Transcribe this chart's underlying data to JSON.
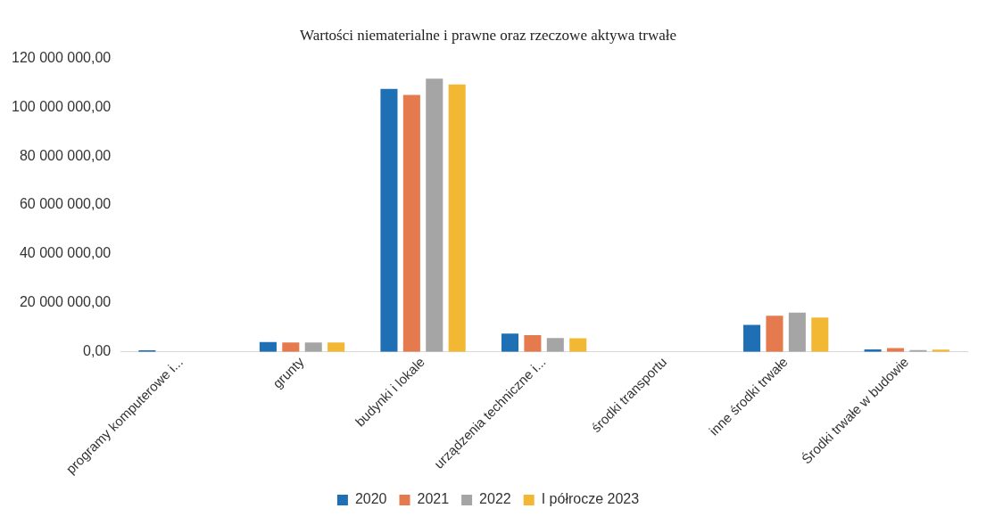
{
  "chart_data": {
    "type": "bar",
    "title": "Wartości niematerialne i prawne oraz rzeczowe aktywa trwałe",
    "categories": [
      "programy komputerowe i...",
      "grunty",
      "budynki i lokale",
      "urządzenia techniczne i...",
      "środki transportu",
      "inne środki trwałe",
      "Środki trwałe w budowie"
    ],
    "series": [
      {
        "name": "2020",
        "color": "#1f6fb4",
        "values": [
          600000,
          4000000,
          107500000,
          7500000,
          0,
          11000000,
          1000000
        ]
      },
      {
        "name": "2021",
        "color": "#e57a4e",
        "values": [
          0,
          3800000,
          105000000,
          6800000,
          0,
          14700000,
          1500000
        ]
      },
      {
        "name": "2022",
        "color": "#a5a5a5",
        "values": [
          0,
          3800000,
          111700000,
          5600000,
          0,
          16000000,
          700000
        ]
      },
      {
        "name": "I półrocze 2023",
        "color": "#f2b733",
        "values": [
          0,
          3800000,
          109300000,
          5500000,
          0,
          14000000,
          900000
        ]
      }
    ],
    "ylim": [
      0,
      120000000
    ],
    "yticks": [
      {
        "value": 0,
        "label": "0,00"
      },
      {
        "value": 20000000,
        "label": "20 000 000,00"
      },
      {
        "value": 40000000,
        "label": "40 000 000,00"
      },
      {
        "value": 60000000,
        "label": "60 000 000,00"
      },
      {
        "value": 80000000,
        "label": "80 000 000,00"
      },
      {
        "value": 100000000,
        "label": "100 000 000,00"
      },
      {
        "value": 120000000,
        "label": "120 000 000,00"
      }
    ],
    "grid": false,
    "legend": "bottom"
  }
}
